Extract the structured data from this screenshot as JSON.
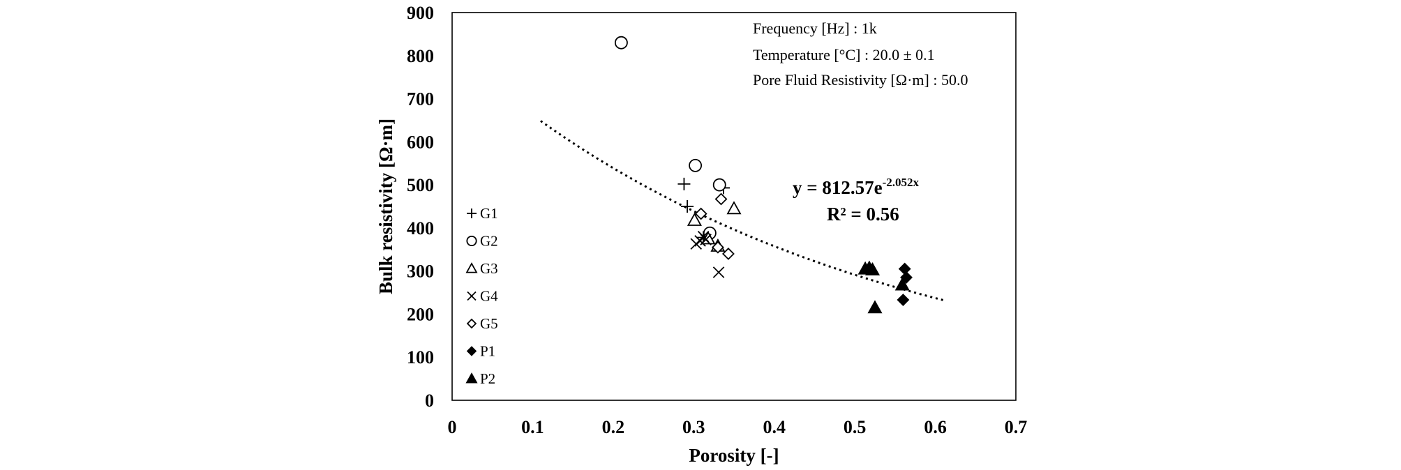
{
  "chart_data": {
    "type": "scatter",
    "title": "",
    "xlabel": "Porosity  [-]",
    "ylabel": "Bulk resistivity  [Ω·m]",
    "xlim": [
      0,
      0.7
    ],
    "ylim": [
      0,
      900
    ],
    "x_ticks": [
      "0",
      "0.1",
      "0.2",
      "0.3",
      "0.4",
      "0.5",
      "0.6",
      "0.7"
    ],
    "y_ticks": [
      "0",
      "100",
      "200",
      "300",
      "400",
      "500",
      "600",
      "700",
      "800",
      "900"
    ],
    "grid": false,
    "legend_position": "left",
    "annotations": [
      "Frequency [Hz] : 1k",
      "Temperature [°C] : 20.0 ± 0.1",
      "Pore Fluid Resistivity  [Ω·m] : 50.0"
    ],
    "fit": {
      "type": "exponential",
      "a": 812.57,
      "b": -2.052,
      "equation_main": "y = 812.57e",
      "equation_exp": "-2.052x",
      "r2": "R² = 0.56",
      "x_range": [
        0.11,
        0.61
      ]
    },
    "series": [
      {
        "name": "G1",
        "marker": "plus",
        "x": [
          0.288,
          0.292,
          0.337,
          0.312
        ],
        "y": [
          502,
          450,
          493,
          378
        ]
      },
      {
        "name": "G2",
        "marker": "circle-open",
        "x": [
          0.21,
          0.302,
          0.332,
          0.32
        ],
        "y": [
          830,
          545,
          500,
          388
        ]
      },
      {
        "name": "G3",
        "marker": "triangle-open",
        "x": [
          0.301,
          0.35,
          0.318,
          0.33
        ],
        "y": [
          418,
          445,
          375,
          358
        ]
      },
      {
        "name": "G4",
        "marker": "x",
        "x": [
          0.303,
          0.308,
          0.312,
          0.315,
          0.331
        ],
        "y": [
          363,
          370,
          380,
          373,
          297
        ]
      },
      {
        "name": "G5",
        "marker": "diamond-open",
        "x": [
          0.309,
          0.334,
          0.343,
          0.33
        ],
        "y": [
          433,
          467,
          340,
          355
        ]
      },
      {
        "name": "P1",
        "marker": "diamond-filled",
        "x": [
          0.562,
          0.564,
          0.56
        ],
        "y": [
          305,
          285,
          233
        ]
      },
      {
        "name": "P2",
        "marker": "triangle-filled",
        "x": [
          0.513,
          0.518,
          0.522,
          0.525,
          0.559
        ],
        "y": [
          305,
          307,
          303,
          215,
          268
        ]
      }
    ]
  }
}
